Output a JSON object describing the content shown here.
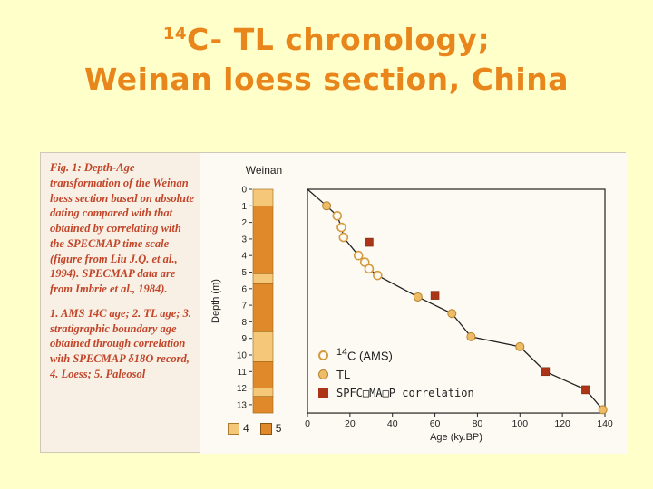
{
  "colors": {
    "background": "#FFFFC9",
    "title": "#E8861C",
    "caption": "#C2452A",
    "loess": "#F4C878",
    "paleosol": "#E0892B",
    "square": "#AC3517",
    "circle": "#EEBC66",
    "line": "#222222"
  },
  "title": {
    "sup": "14",
    "line1": "C- TL chronology;",
    "line2": "Weinan loess section, China"
  },
  "figure": {
    "caption_para1": "Fig. 1: Depth-Age transformation of the Weinan loess section based on absolute dating compared with that obtained by correlating with the SPECMAP time scale (figure from Liu J.Q. et al., 1994). SPECMAP data are from Imbrie et al., 1984).",
    "caption_para2": "1. AMS 14C age; 2. TL age; 3. stratigraphic boundary age obtained through correlation with SPECMAP δ18O record, 4. Loess; 5. Paleosol",
    "column_title": "Weinan",
    "strat_legend": {
      "loess_label": "4",
      "paleosol_label": "5"
    }
  },
  "legend": {
    "c14_sup": "14",
    "c14_label": "C (AMS)",
    "tl_label": "TL",
    "specmap_label": "SPFC□MA□P correlation"
  },
  "chart_data": {
    "type": "scatter",
    "title": "Depth-Age transformation of the Weinan loess section",
    "xlabel": "Age (ky.BP)",
    "ylabel": "Depth (m)",
    "xlim": [
      0,
      140
    ],
    "ylim": [
      0,
      13.5
    ],
    "x_ticks": [
      0,
      20,
      40,
      60,
      80,
      100,
      120,
      140
    ],
    "y_ticks": [
      0,
      1,
      2,
      3,
      4,
      5,
      6,
      7,
      8,
      9,
      10,
      11,
      12,
      13
    ],
    "grid": false,
    "legend_position": "inside lower-left",
    "series": [
      {
        "name": "14C (AMS)",
        "marker": "open-circle",
        "points": [
          [
            14,
            1.6
          ],
          [
            16,
            2.3
          ],
          [
            17,
            2.9
          ],
          [
            24,
            4.0
          ],
          [
            27,
            4.4
          ],
          [
            29,
            4.8
          ],
          [
            33,
            5.2
          ]
        ]
      },
      {
        "name": "TL",
        "marker": "filled-circle",
        "points": [
          [
            9,
            1.0
          ],
          [
            52,
            6.5
          ],
          [
            68,
            7.5
          ],
          [
            77,
            8.9
          ],
          [
            100,
            9.5
          ],
          [
            139,
            13.3
          ]
        ]
      },
      {
        "name": "SPECMAP correlation",
        "marker": "filled-square",
        "points": [
          [
            29,
            3.2
          ],
          [
            60,
            6.4
          ],
          [
            112,
            11.0
          ],
          [
            131,
            12.1
          ]
        ]
      }
    ],
    "line": [
      [
        0,
        0
      ],
      [
        9,
        1.0
      ],
      [
        14,
        1.6
      ],
      [
        16,
        2.3
      ],
      [
        17,
        2.9
      ],
      [
        24,
        4.0
      ],
      [
        27,
        4.4
      ],
      [
        29,
        4.8
      ],
      [
        33,
        5.2
      ],
      [
        52,
        6.5
      ],
      [
        68,
        7.5
      ],
      [
        77,
        8.9
      ],
      [
        100,
        9.5
      ],
      [
        112,
        11.0
      ],
      [
        131,
        12.1
      ],
      [
        139,
        13.3
      ]
    ],
    "strat_column": {
      "segments": [
        {
          "from": 0,
          "to": 1.0,
          "type": "loess"
        },
        {
          "from": 1.0,
          "to": 5.1,
          "type": "paleosol"
        },
        {
          "from": 5.1,
          "to": 5.7,
          "type": "loess"
        },
        {
          "from": 5.7,
          "to": 8.6,
          "type": "paleosol"
        },
        {
          "from": 8.6,
          "to": 10.4,
          "type": "loess"
        },
        {
          "from": 10.4,
          "to": 12.0,
          "type": "paleosol"
        },
        {
          "from": 12.0,
          "to": 12.5,
          "type": "loess"
        },
        {
          "from": 12.5,
          "to": 13.5,
          "type": "paleosol"
        }
      ]
    }
  }
}
